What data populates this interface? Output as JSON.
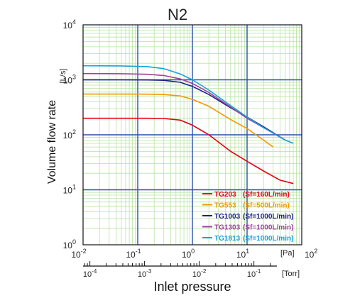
{
  "chart_data": {
    "type": "line",
    "title": "N2",
    "xlabel": "Inlet pressure",
    "ylabel": "Volume flow rate",
    "y_unit": "[L/s]",
    "x_unit_top": "[Pa]",
    "x_unit_bottom": "[Torr]",
    "x_scale": "log",
    "y_scale": "log",
    "xlim": [
      0.01,
      100
    ],
    "ylim": [
      1,
      10000
    ],
    "x_ticks": [
      {
        "value": 0.01,
        "base": "10",
        "exp": "-2"
      },
      {
        "value": 0.1,
        "base": "10",
        "exp": "-1"
      },
      {
        "value": 1,
        "base": "10",
        "exp": "0"
      },
      {
        "value": 10,
        "base": "10",
        "exp": "1"
      },
      {
        "value": 100,
        "base": "10",
        "exp": "2"
      }
    ],
    "y_ticks": [
      {
        "value": 1,
        "base": "10",
        "exp": "0"
      },
      {
        "value": 10,
        "base": "10",
        "exp": "1"
      },
      {
        "value": 100,
        "base": "10",
        "exp": "2"
      },
      {
        "value": 1000,
        "base": "10",
        "exp": "3"
      },
      {
        "value": 10000,
        "base": "10",
        "exp": "4"
      }
    ],
    "torr_ticks": [
      {
        "value": 0.0001,
        "base": "10",
        "exp": "-4"
      },
      {
        "value": 0.001,
        "base": "10",
        "exp": "-3"
      },
      {
        "value": 0.01,
        "base": "10",
        "exp": "-2"
      },
      {
        "value": 0.1,
        "base": "10",
        "exp": "-1"
      }
    ],
    "grid": true,
    "legend_position": "bottom-right",
    "series": [
      {
        "name": "TG203",
        "note": "(Sf=160L/min)",
        "color": "#e60012",
        "x": [
          0.01,
          0.05,
          0.15,
          0.3,
          0.6,
          1,
          2,
          5,
          10,
          20,
          40,
          70
        ],
        "y": [
          200,
          200,
          200,
          198,
          185,
          150,
          100,
          50,
          33,
          22,
          15,
          13
        ]
      },
      {
        "name": "TG553",
        "note": "(Sf=500L/min)",
        "color": "#f39800",
        "x": [
          0.01,
          0.05,
          0.15,
          0.3,
          0.6,
          1,
          2,
          5,
          10,
          20,
          30
        ],
        "y": [
          550,
          550,
          548,
          540,
          510,
          440,
          330,
          190,
          130,
          80,
          60
        ]
      },
      {
        "name": "TG1003",
        "note": "(Sf=1000L/min)",
        "color": "#1d2088",
        "x": [
          0.01,
          0.05,
          0.15,
          0.3,
          0.6,
          1,
          2,
          5,
          10,
          20,
          50
        ],
        "y": [
          1000,
          1000,
          995,
          980,
          900,
          760,
          540,
          310,
          210,
          140,
          80
        ]
      },
      {
        "name": "TG1303",
        "note": "(Sf=1000L/min)",
        "color": "#a040a0",
        "x": [
          0.01,
          0.05,
          0.15,
          0.3,
          0.6,
          1,
          2,
          5,
          10,
          20,
          50
        ],
        "y": [
          1300,
          1290,
          1260,
          1200,
          1040,
          860,
          590,
          320,
          200,
          135,
          80
        ]
      },
      {
        "name": "TG1813",
        "note": "(Sf=1000L/min)",
        "color": "#1aa0dc",
        "x": [
          0.01,
          0.05,
          0.15,
          0.3,
          0.6,
          1,
          2,
          5,
          10,
          20,
          50,
          70
        ],
        "y": [
          1800,
          1790,
          1740,
          1600,
          1280,
          1000,
          650,
          340,
          210,
          135,
          80,
          70
        ]
      }
    ]
  }
}
